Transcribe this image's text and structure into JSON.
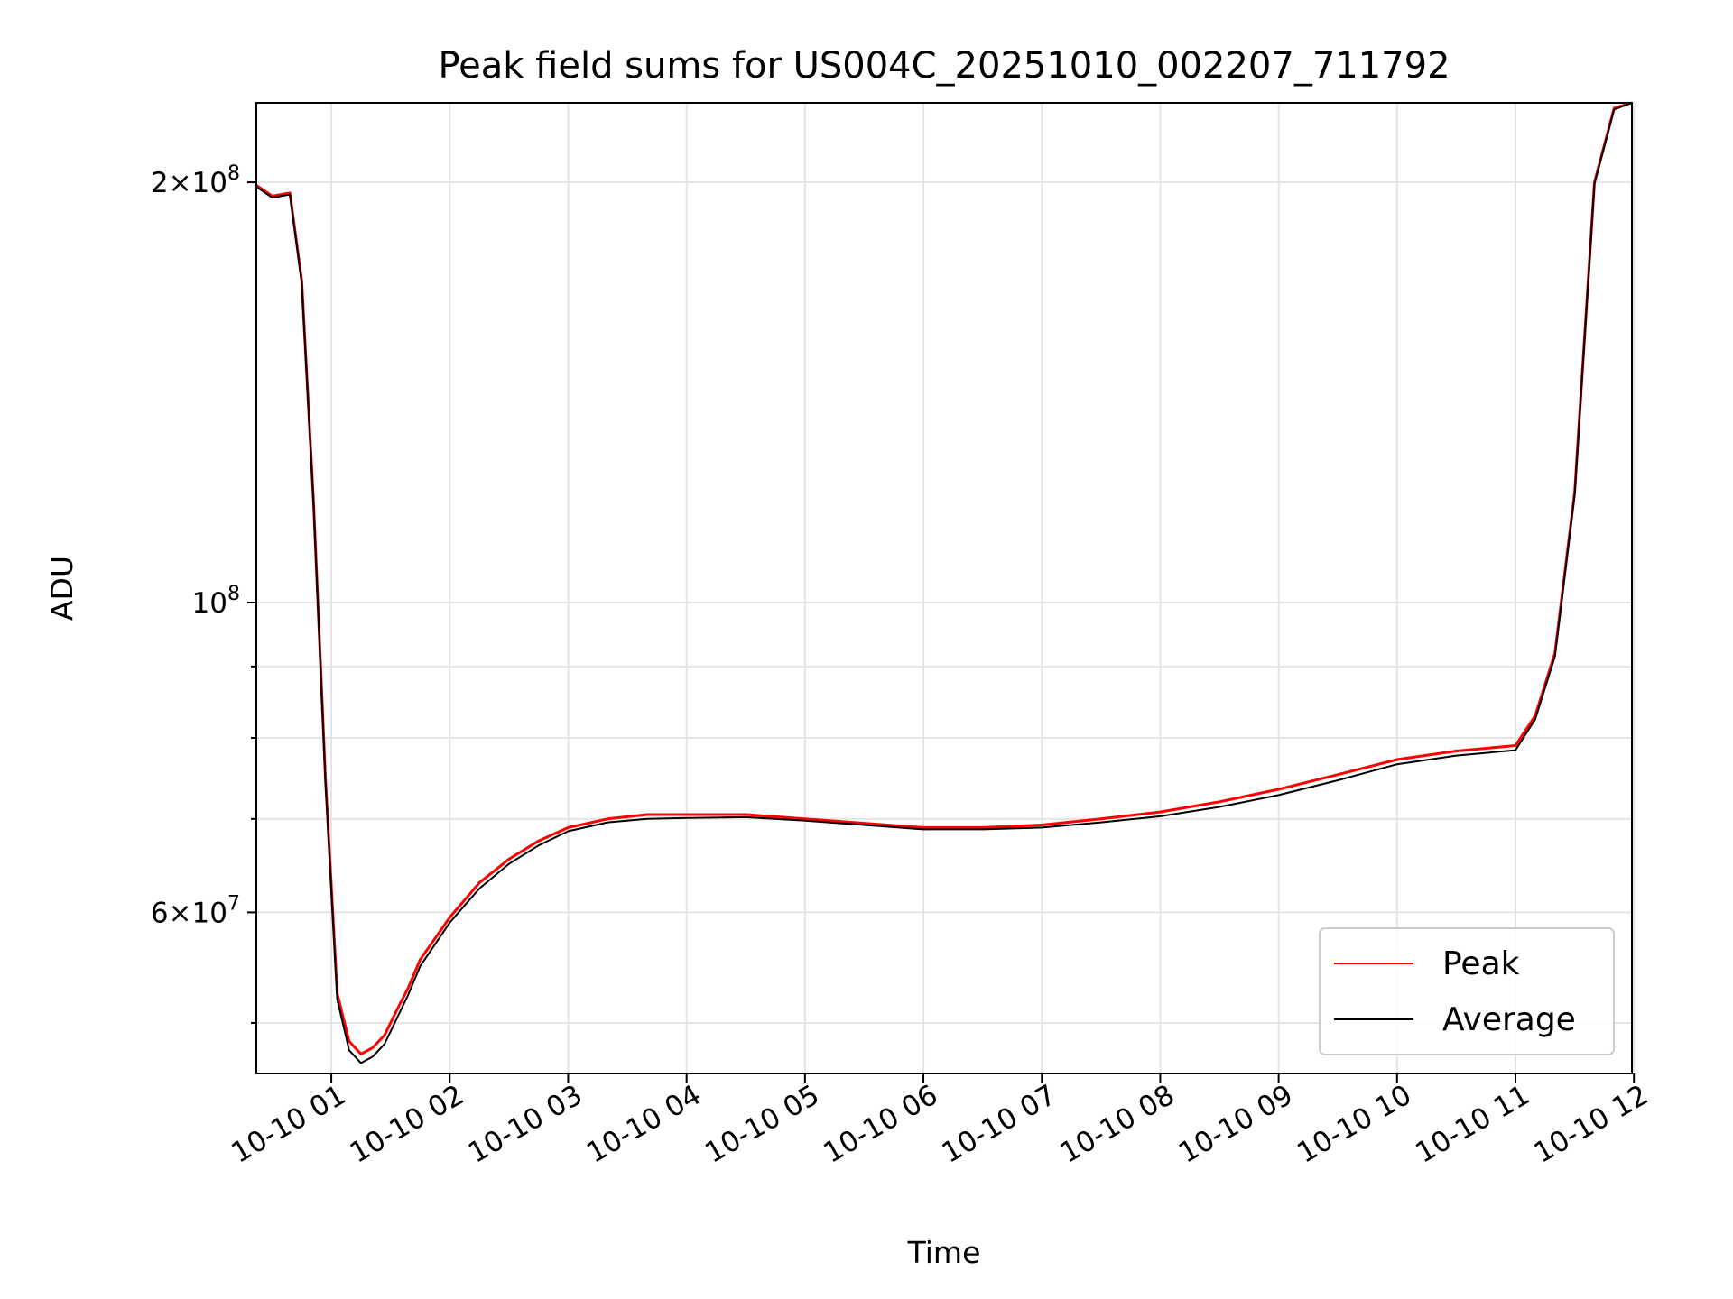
{
  "chart_data": {
    "type": "line",
    "title": "Peak field sums for US004C_20251010_002207_711792",
    "xlabel": "Time",
    "ylabel": "ADU",
    "y_scale": "log",
    "ylim": [
      46000000,
      228000000
    ],
    "xlim": [
      "2025-10-10 00:22",
      "2025-10-10 11:59"
    ],
    "grid": true,
    "legend_position": "lower-right",
    "x_ticks": [
      {
        "value": "2025-10-10 01:00",
        "label": "10-10 01"
      },
      {
        "value": "2025-10-10 02:00",
        "label": "10-10 02"
      },
      {
        "value": "2025-10-10 03:00",
        "label": "10-10 03"
      },
      {
        "value": "2025-10-10 04:00",
        "label": "10-10 04"
      },
      {
        "value": "2025-10-10 05:00",
        "label": "10-10 05"
      },
      {
        "value": "2025-10-10 06:00",
        "label": "10-10 06"
      },
      {
        "value": "2025-10-10 07:00",
        "label": "10-10 07"
      },
      {
        "value": "2025-10-10 08:00",
        "label": "10-10 08"
      },
      {
        "value": "2025-10-10 09:00",
        "label": "10-10 09"
      },
      {
        "value": "2025-10-10 10:00",
        "label": "10-10 10"
      },
      {
        "value": "2025-10-10 11:00",
        "label": "10-10 11"
      },
      {
        "value": "2025-10-10 12:00",
        "label": "10-10 12"
      }
    ],
    "y_major_ticks": [
      {
        "value": 60000000,
        "mantissa": "6",
        "exponent": "7"
      },
      {
        "value": 100000000,
        "mantissa": "",
        "exponent": "8"
      },
      {
        "value": 200000000,
        "mantissa": "2",
        "exponent": "8"
      }
    ],
    "y_minor_ticks": [
      50000000,
      70000000,
      80000000,
      90000000
    ],
    "series": [
      {
        "name": "Peak",
        "color": "#ff0000",
        "x": [
          "2025-10-10 00:22",
          "2025-10-10 00:30",
          "2025-10-10 00:39",
          "2025-10-10 00:45",
          "2025-10-10 00:51",
          "2025-10-10 00:57",
          "2025-10-10 01:03",
          "2025-10-10 01:09",
          "2025-10-10 01:15",
          "2025-10-10 01:21",
          "2025-10-10 01:27",
          "2025-10-10 01:33",
          "2025-10-10 01:39",
          "2025-10-10 01:45",
          "2025-10-10 02:00",
          "2025-10-10 02:15",
          "2025-10-10 02:30",
          "2025-10-10 02:45",
          "2025-10-10 03:00",
          "2025-10-10 03:20",
          "2025-10-10 03:40",
          "2025-10-10 04:00",
          "2025-10-10 04:30",
          "2025-10-10 05:00",
          "2025-10-10 05:30",
          "2025-10-10 06:00",
          "2025-10-10 06:30",
          "2025-10-10 07:00",
          "2025-10-10 07:30",
          "2025-10-10 08:00",
          "2025-10-10 08:30",
          "2025-10-10 09:00",
          "2025-10-10 09:30",
          "2025-10-10 10:00",
          "2025-10-10 10:30",
          "2025-10-10 11:00",
          "2025-10-10 11:10",
          "2025-10-10 11:20",
          "2025-10-10 11:30",
          "2025-10-10 11:40",
          "2025-10-10 11:50",
          "2025-10-10 11:59"
        ],
        "values": [
          199000000,
          195500000,
          196500000,
          170000000,
          118000000,
          75000000,
          52500000,
          48500000,
          47500000,
          48000000,
          49000000,
          51000000,
          53000000,
          55500000,
          59500000,
          63000000,
          65500000,
          67500000,
          69000000,
          70000000,
          70500000,
          70500000,
          70500000,
          70000000,
          69500000,
          69000000,
          69000000,
          69300000,
          70000000,
          70800000,
          72000000,
          73500000,
          75300000,
          77200000,
          78300000,
          79000000,
          83000000,
          92000000,
          120000000,
          200000000,
          226000000,
          228000000
        ]
      },
      {
        "name": "Average",
        "color": "#000000",
        "x": [
          "2025-10-10 00:22",
          "2025-10-10 00:30",
          "2025-10-10 00:39",
          "2025-10-10 00:45",
          "2025-10-10 00:51",
          "2025-10-10 00:57",
          "2025-10-10 01:03",
          "2025-10-10 01:09",
          "2025-10-10 01:15",
          "2025-10-10 01:21",
          "2025-10-10 01:27",
          "2025-10-10 01:33",
          "2025-10-10 01:39",
          "2025-10-10 01:45",
          "2025-10-10 02:00",
          "2025-10-10 02:15",
          "2025-10-10 02:30",
          "2025-10-10 02:45",
          "2025-10-10 03:00",
          "2025-10-10 03:20",
          "2025-10-10 03:40",
          "2025-10-10 04:00",
          "2025-10-10 04:30",
          "2025-10-10 05:00",
          "2025-10-10 05:30",
          "2025-10-10 06:00",
          "2025-10-10 06:30",
          "2025-10-10 07:00",
          "2025-10-10 07:30",
          "2025-10-10 08:00",
          "2025-10-10 08:30",
          "2025-10-10 09:00",
          "2025-10-10 09:30",
          "2025-10-10 10:00",
          "2025-10-10 10:30",
          "2025-10-10 11:00",
          "2025-10-10 11:10",
          "2025-10-10 11:20",
          "2025-10-10 11:30",
          "2025-10-10 11:40",
          "2025-10-10 11:50",
          "2025-10-10 11:59"
        ],
        "values": [
          198500000,
          195000000,
          196000000,
          169500000,
          117500000,
          74500000,
          52000000,
          47800000,
          46800000,
          47300000,
          48300000,
          50300000,
          52400000,
          54900000,
          59000000,
          62400000,
          65000000,
          67000000,
          68600000,
          69600000,
          70000000,
          70100000,
          70200000,
          69800000,
          69300000,
          68800000,
          68800000,
          69000000,
          69600000,
          70300000,
          71400000,
          72800000,
          74600000,
          76600000,
          77700000,
          78400000,
          82500000,
          91500000,
          119500000,
          199500000,
          225500000,
          228000000
        ]
      }
    ]
  }
}
